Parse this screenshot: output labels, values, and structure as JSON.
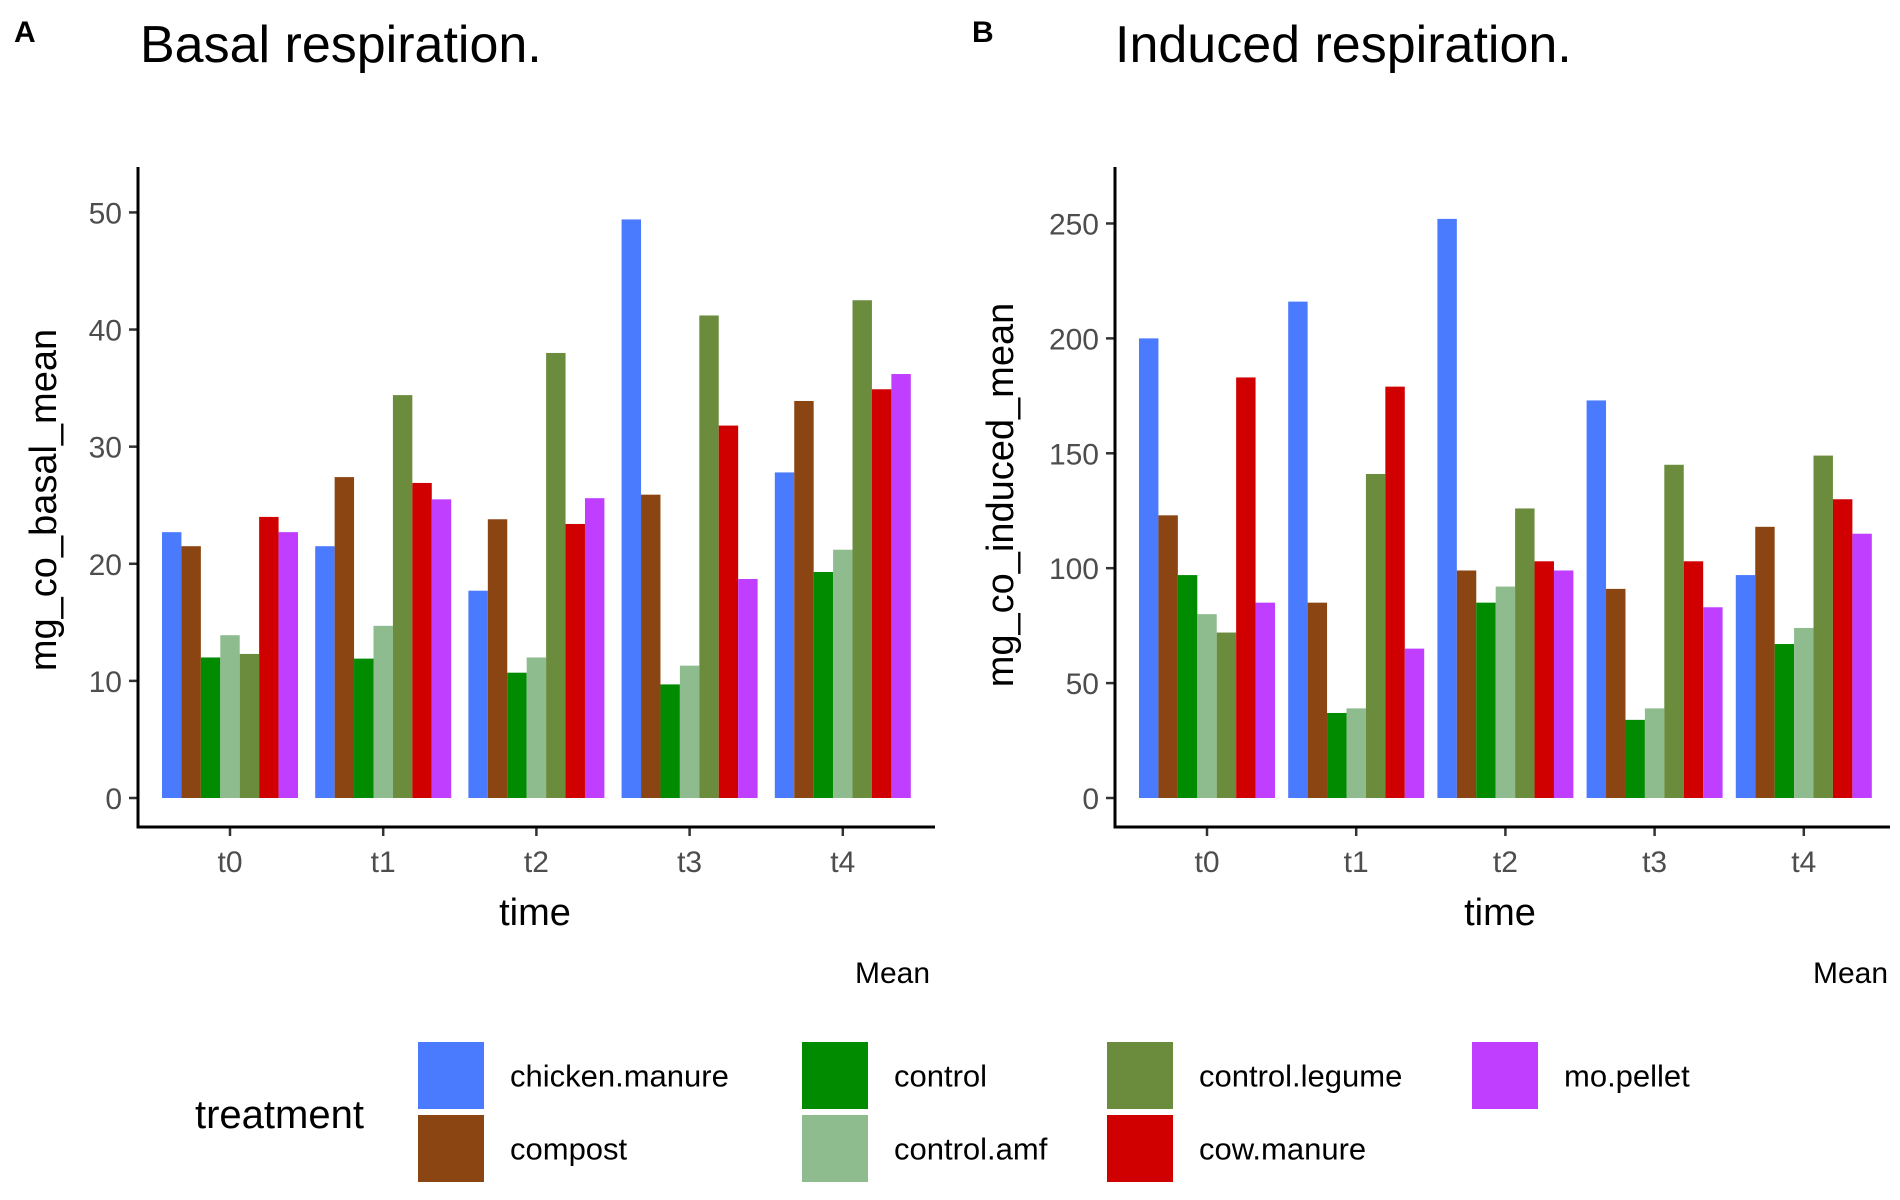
{
  "chart_data": [
    {
      "type": "bar",
      "panel_tag": "A",
      "title": "Basal respiration.",
      "xlabel": "time",
      "ylabel": "mg_co_basal_mean",
      "caption": "Mean",
      "categories": [
        "t0",
        "t1",
        "t2",
        "t3",
        "t4"
      ],
      "ylim": [
        0,
        52
      ],
      "yticks": [
        0,
        10,
        20,
        30,
        40,
        50
      ],
      "series": [
        {
          "name": "chicken.manure",
          "values": [
            22.7,
            21.5,
            17.7,
            49.4,
            27.8
          ]
        },
        {
          "name": "compost",
          "values": [
            21.5,
            27.4,
            23.8,
            25.9,
            33.9
          ]
        },
        {
          "name": "control",
          "values": [
            12.0,
            11.9,
            10.7,
            9.7,
            19.3
          ]
        },
        {
          "name": "control.amf",
          "values": [
            13.9,
            14.7,
            12.0,
            11.3,
            21.2
          ]
        },
        {
          "name": "control.legume",
          "values": [
            12.3,
            34.4,
            38.0,
            41.2,
            42.5
          ]
        },
        {
          "name": "cow.manure",
          "values": [
            24.0,
            26.9,
            23.4,
            31.8,
            34.9
          ]
        },
        {
          "name": "mo.pellet",
          "values": [
            22.7,
            25.5,
            25.6,
            18.7,
            36.2
          ]
        }
      ],
      "grid": false,
      "legend": "bottom"
    },
    {
      "type": "bar",
      "panel_tag": "B",
      "title": "Induced respiration.",
      "xlabel": "time",
      "ylabel": "mg_co_induced_mean",
      "caption": "Mean",
      "categories": [
        "t0",
        "t1",
        "t2",
        "t3",
        "t4"
      ],
      "ylim": [
        0,
        265
      ],
      "yticks": [
        0,
        50,
        100,
        150,
        200,
        250
      ],
      "series": [
        {
          "name": "chicken.manure",
          "values": [
            200,
            216,
            252,
            173,
            97
          ]
        },
        {
          "name": "compost",
          "values": [
            123,
            85,
            99,
            91,
            118
          ]
        },
        {
          "name": "control",
          "values": [
            97,
            37,
            85,
            34,
            67
          ]
        },
        {
          "name": "control.amf",
          "values": [
            80,
            39,
            92,
            39,
            74
          ]
        },
        {
          "name": "control.legume",
          "values": [
            72,
            141,
            126,
            145,
            149
          ]
        },
        {
          "name": "cow.manure",
          "values": [
            183,
            179,
            103,
            103,
            130
          ]
        },
        {
          "name": "mo.pellet",
          "values": [
            85,
            65,
            99,
            83,
            115
          ]
        }
      ],
      "grid": false,
      "legend": "bottom"
    }
  ],
  "legend": {
    "title": "treatment",
    "entries": [
      {
        "label": "chicken.manure",
        "color": "#4a7bff"
      },
      {
        "label": "compost",
        "color": "#8b4513"
      },
      {
        "label": "control",
        "color": "#008b00"
      },
      {
        "label": "control.amf",
        "color": "#8fbc8f"
      },
      {
        "label": "control.legume",
        "color": "#6b8b3d"
      },
      {
        "label": "cow.manure",
        "color": "#d00000"
      },
      {
        "label": "mo.pellet",
        "color": "#bf3eff"
      }
    ]
  }
}
